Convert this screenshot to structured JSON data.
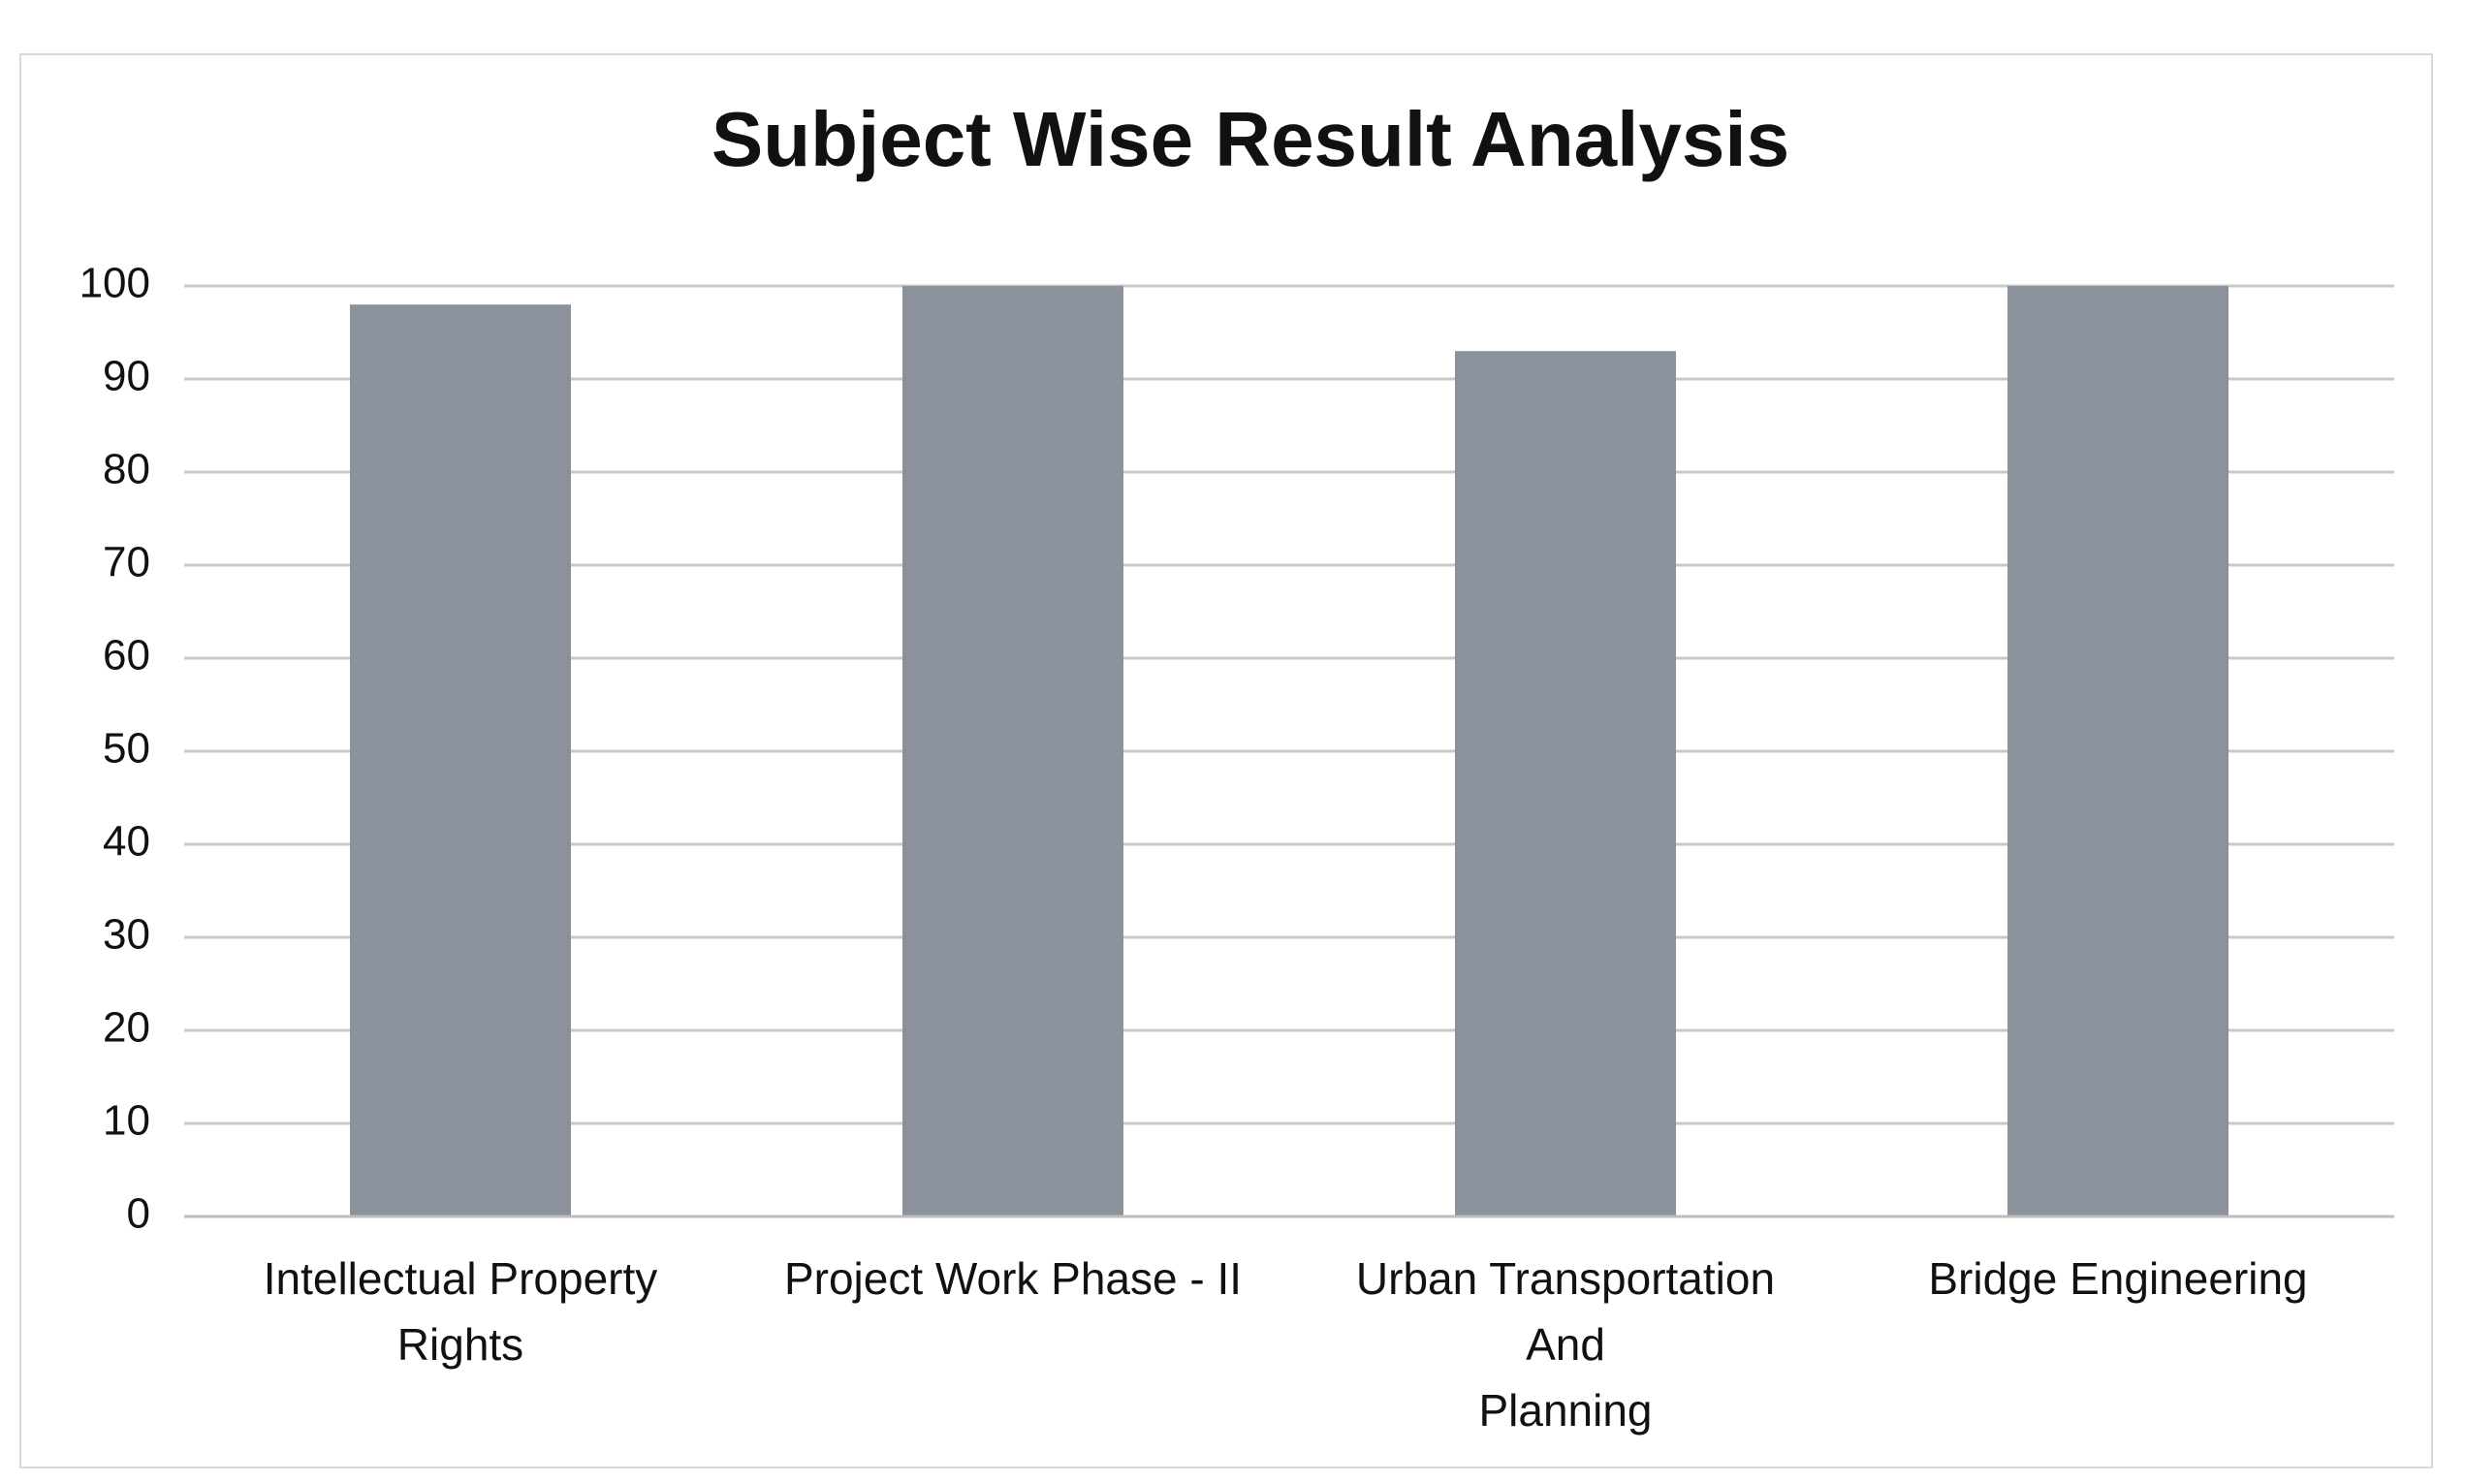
{
  "chart_data": {
    "type": "bar",
    "title": "Subject Wise Result Analysis",
    "categories": [
      "Intellectual Property\nRights",
      "Project Work Phase - II",
      "Urban Transportation\nAnd\nPlanning",
      "Bridge Engineering"
    ],
    "values": [
      98,
      100,
      93,
      100
    ],
    "color": "#8c929b",
    "ylim": [
      0,
      100
    ],
    "yticks": [
      0,
      10,
      20,
      30,
      40,
      50,
      60,
      70,
      80,
      90,
      100
    ],
    "grid": true
  }
}
